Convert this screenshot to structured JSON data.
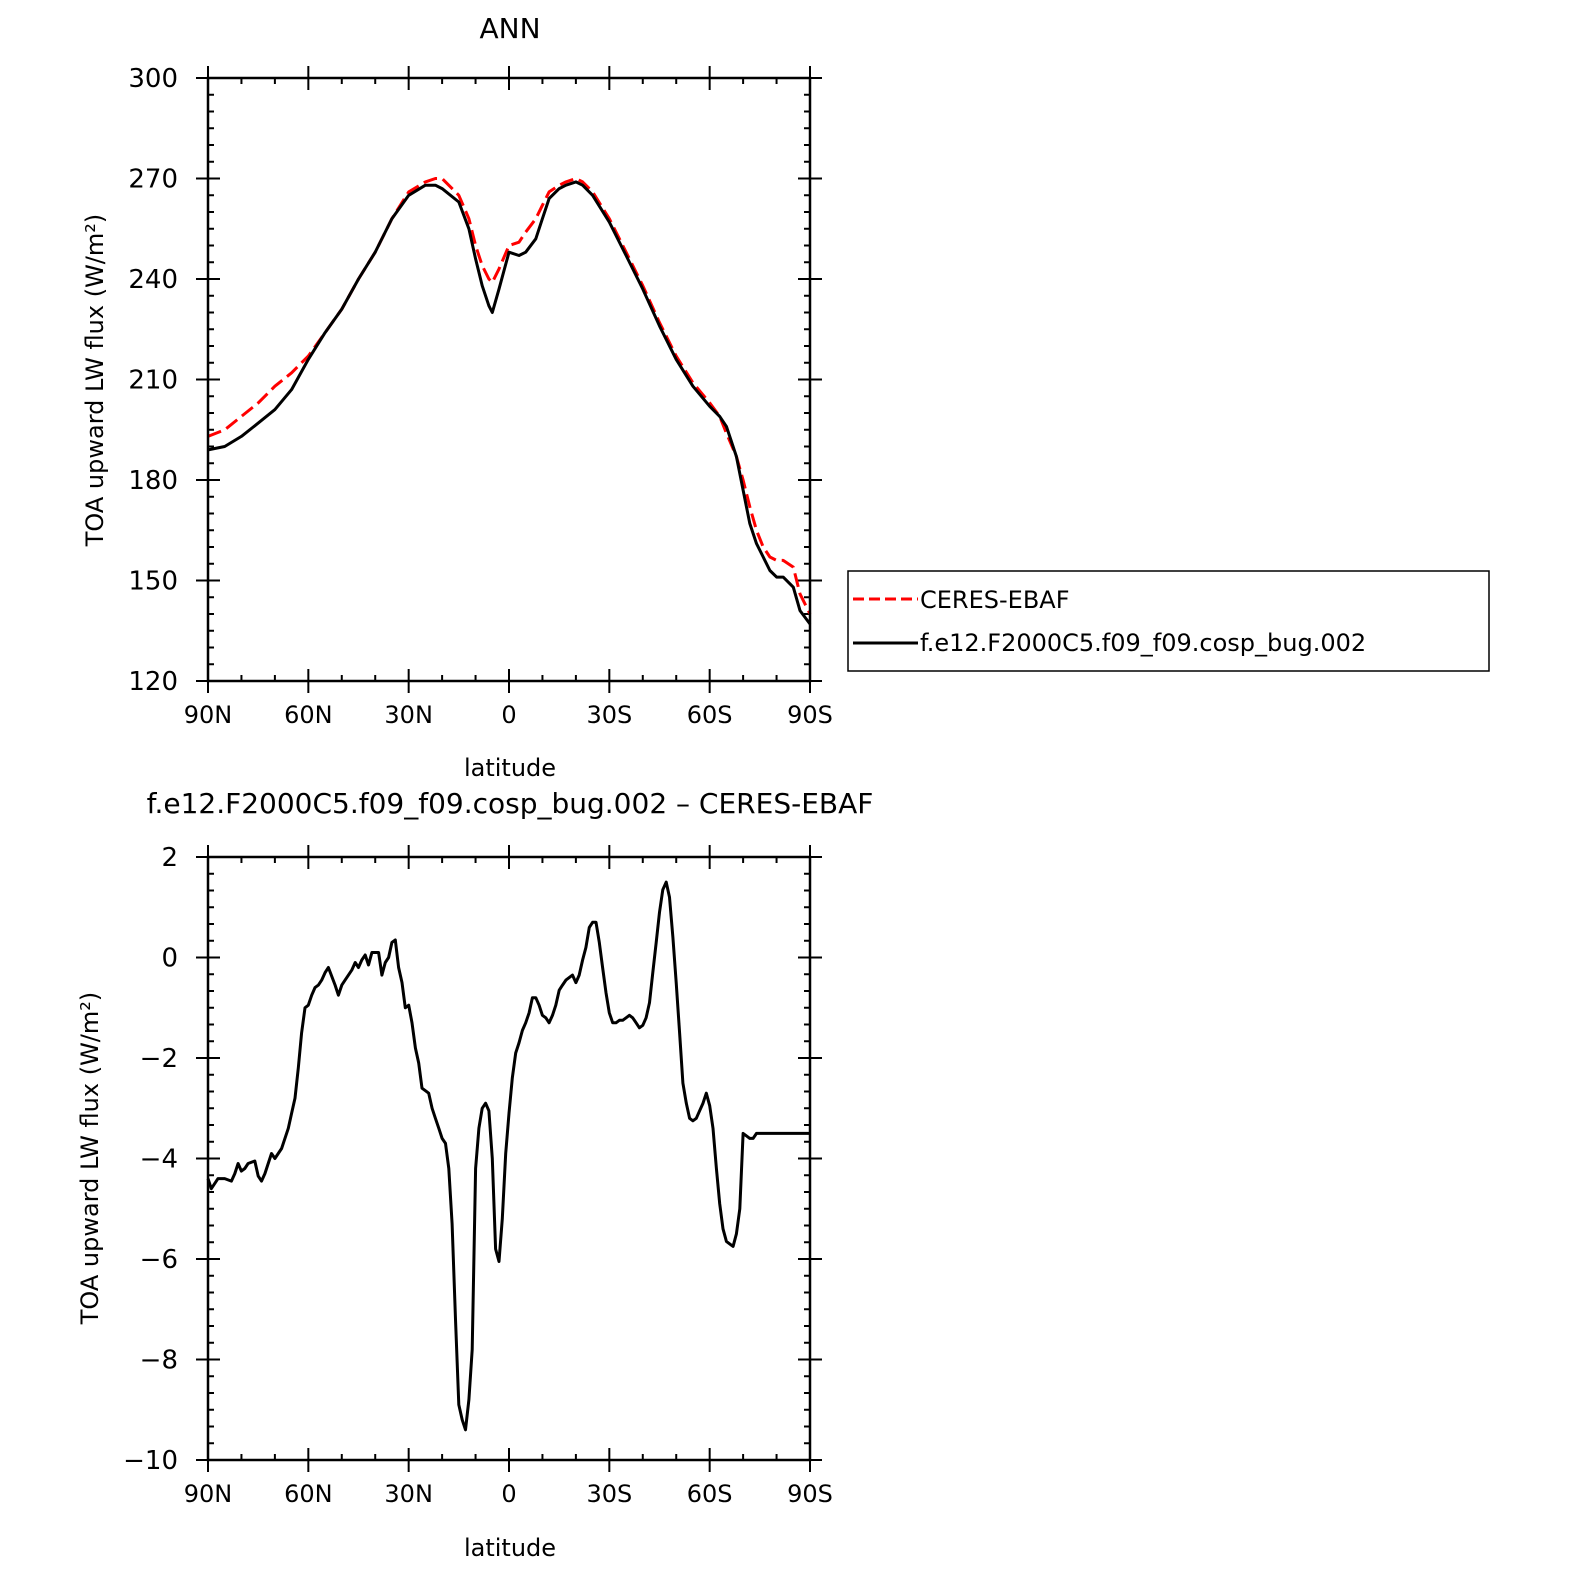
{
  "chart_data": [
    {
      "type": "line",
      "title": "ANN",
      "xlabel": "latitude",
      "ylabel": "TOA upward LW flux (W/m²)",
      "xlim": [
        90,
        -90
      ],
      "ylim": [
        120,
        300
      ],
      "xticks": [
        90,
        60,
        30,
        0,
        -30,
        -60,
        -90
      ],
      "xtick_labels": [
        "90N",
        "60N",
        "30N",
        "0",
        "30S",
        "60S",
        "90S"
      ],
      "yticks": [
        120,
        150,
        180,
        210,
        240,
        270,
        300
      ],
      "ytick_labels": [
        "120",
        "150",
        "180",
        "210",
        "240",
        "270",
        "300"
      ],
      "legend": {
        "placement": "right",
        "entries": [
          "CERES-EBAF",
          "f.e12.F2000C5.f09_f09.cosp_bug.002"
        ]
      },
      "series": [
        {
          "name": "CERES-EBAF",
          "color": "#ff0000",
          "dash": "dashed",
          "x": [
            90,
            85,
            80,
            75,
            70,
            65,
            60,
            55,
            50,
            45,
            40,
            35,
            30,
            25,
            22,
            20,
            15,
            12,
            10,
            8,
            6,
            5,
            3,
            0,
            -3,
            -5,
            -8,
            -10,
            -12,
            -15,
            -17,
            -20,
            -22,
            -25,
            -30,
            -35,
            -40,
            -45,
            -50,
            -55,
            -60,
            -63,
            -65,
            -68,
            -70,
            -72,
            -74,
            -76,
            -78,
            -80,
            -82,
            -85,
            -87,
            -90
          ],
          "y": [
            193,
            195,
            199,
            203,
            208,
            212,
            217,
            224,
            231,
            240,
            248,
            258,
            266,
            269,
            270,
            270,
            265,
            258,
            250,
            244,
            240,
            239,
            243,
            250,
            251,
            254,
            258,
            262,
            266,
            268,
            269,
            270,
            269,
            266,
            258,
            248,
            238,
            227,
            217,
            209,
            203,
            199,
            194,
            187,
            180,
            172,
            165,
            160,
            157,
            156,
            156,
            154,
            146,
            140
          ]
        },
        {
          "name": "f.e12.F2000C5.f09_f09.cosp_bug.002",
          "color": "#000000",
          "dash": "solid",
          "x": [
            90,
            85,
            80,
            75,
            70,
            65,
            60,
            55,
            50,
            45,
            40,
            35,
            30,
            25,
            22,
            20,
            15,
            12,
            10,
            8,
            6,
            5,
            3,
            0,
            -3,
            -5,
            -8,
            -10,
            -12,
            -15,
            -17,
            -20,
            -22,
            -25,
            -30,
            -35,
            -40,
            -45,
            -50,
            -55,
            -60,
            -63,
            -65,
            -68,
            -70,
            -72,
            -74,
            -76,
            -78,
            -80,
            -82,
            -85,
            -87,
            -90
          ],
          "y": [
            189,
            190,
            193,
            197,
            201,
            207,
            216,
            224,
            231,
            240,
            248,
            258,
            265,
            268,
            268,
            267,
            263,
            255,
            246,
            238,
            232,
            230,
            237,
            248,
            247,
            248,
            252,
            258,
            264,
            267,
            268,
            269,
            268,
            265,
            257,
            247,
            237,
            226,
            216,
            208,
            202,
            199,
            196,
            187,
            177,
            167,
            161,
            157,
            153,
            151,
            151,
            148,
            141,
            137
          ]
        }
      ]
    },
    {
      "type": "line",
      "title": "f.e12.F2000C5.f09_f09.cosp_bug.002 – CERES-EBAF",
      "xlabel": "latitude",
      "ylabel": "TOA upward LW flux (W/m²)",
      "xlim": [
        90,
        -90
      ],
      "ylim": [
        -10,
        2
      ],
      "xticks": [
        90,
        60,
        30,
        0,
        -30,
        -60,
        -90
      ],
      "xtick_labels": [
        "90N",
        "60N",
        "30N",
        "0",
        "30S",
        "60S",
        "90S"
      ],
      "yticks": [
        2,
        0,
        -2,
        -4,
        -6,
        -8,
        -10
      ],
      "ytick_labels": [
        "2",
        "0",
        "−2",
        "−4",
        "−6",
        "−8",
        "−10"
      ],
      "series": [
        {
          "name": "",
          "color": "#000000",
          "dash": "solid",
          "x": [
            90,
            89,
            88,
            87,
            85,
            83,
            82,
            81,
            80,
            79,
            78,
            76,
            75,
            74,
            73,
            71,
            70,
            68,
            66,
            65,
            64,
            63,
            62,
            61,
            60,
            59,
            58,
            57,
            56,
            55,
            54,
            52,
            51,
            50,
            49,
            47,
            46,
            45,
            44,
            43,
            42,
            41,
            40,
            39,
            38,
            37,
            36,
            35,
            34,
            33,
            32,
            31,
            30,
            29,
            28,
            27,
            26,
            25,
            24,
            23,
            22,
            21,
            20,
            19,
            18,
            17,
            16,
            15,
            14,
            13,
            12,
            11,
            10,
            9,
            8,
            7,
            6,
            5,
            4,
            3,
            2,
            1,
            0,
            -1,
            -2,
            -3,
            -4,
            -5,
            -6,
            -7,
            -8,
            -9,
            -10,
            -11,
            -12,
            -13,
            -14,
            -15,
            -16,
            -17,
            -18,
            -19,
            -20,
            -21,
            -22,
            -23,
            -24,
            -25,
            -26,
            -27,
            -28,
            -29,
            -30,
            -31,
            -32,
            -33,
            -34,
            -35,
            -36,
            -37,
            -38,
            -39,
            -40,
            -41,
            -42,
            -43,
            -44,
            -45,
            -46,
            -47,
            -48,
            -49,
            -50,
            -51,
            -52,
            -53,
            -54,
            -55,
            -56,
            -57,
            -58,
            -59,
            -60,
            -61,
            -62,
            -63,
            -64,
            -65,
            -66,
            -67,
            -68,
            -69,
            -70,
            -71,
            -72,
            -73,
            -74,
            -75,
            -76,
            -77,
            -78,
            -79,
            -80,
            -81,
            -82,
            -83,
            -84,
            -85,
            -86,
            -87,
            -88,
            -89,
            -90
          ],
          "y": [
            -4.4,
            -4.6,
            -4.5,
            -4.4,
            -4.4,
            -4.45,
            -4.3,
            -4.1,
            -4.25,
            -4.2,
            -4.1,
            -4.05,
            -4.35,
            -4.45,
            -4.3,
            -3.9,
            -4.0,
            -3.8,
            -3.4,
            -3.1,
            -2.8,
            -2.2,
            -1.5,
            -1.0,
            -0.95,
            -0.75,
            -0.6,
            -0.55,
            -0.45,
            -0.3,
            -0.2,
            -0.55,
            -0.75,
            -0.55,
            -0.45,
            -0.25,
            -0.1,
            -0.2,
            -0.05,
            0.05,
            -0.15,
            0.1,
            0.1,
            0.1,
            -0.35,
            -0.1,
            0.0,
            0.3,
            0.35,
            -0.2,
            -0.5,
            -1.0,
            -0.95,
            -1.3,
            -1.8,
            -2.1,
            -2.6,
            -2.65,
            -2.7,
            -3.0,
            -3.2,
            -3.4,
            -3.6,
            -3.7,
            -4.2,
            -5.3,
            -7.2,
            -8.9,
            -9.2,
            -9.4,
            -8.8,
            -7.8,
            -4.2,
            -3.4,
            -3.0,
            -2.9,
            -3.05,
            -4.0,
            -5.8,
            -6.05,
            -5.2,
            -3.9,
            -3.1,
            -2.4,
            -1.9,
            -1.7,
            -1.45,
            -1.3,
            -1.1,
            -0.8,
            -0.8,
            -0.95,
            -1.15,
            -1.2,
            -1.3,
            -1.15,
            -0.95,
            -0.65,
            -0.55,
            -0.45,
            -0.4,
            -0.35,
            -0.5,
            -0.35,
            -0.05,
            0.2,
            0.6,
            0.7,
            0.7,
            0.3,
            -0.2,
            -0.7,
            -1.1,
            -1.3,
            -1.3,
            -1.25,
            -1.25,
            -1.2,
            -1.15,
            -1.2,
            -1.3,
            -1.4,
            -1.35,
            -1.2,
            -0.9,
            -0.3,
            0.3,
            0.9,
            1.35,
            1.5,
            1.2,
            0.4,
            -0.5,
            -1.5,
            -2.5,
            -2.9,
            -3.2,
            -3.25,
            -3.2,
            -3.05,
            -2.9,
            -2.7,
            -2.95,
            -3.4,
            -4.2,
            -4.9,
            -5.4,
            -5.65,
            -5.7,
            -5.75,
            -5.5,
            -5.0,
            -3.5,
            -3.55,
            -3.6,
            -3.6,
            -3.5,
            -3.5,
            -3.5,
            -3.5,
            -3.5,
            -3.5,
            -3.5,
            -3.5,
            -3.5,
            -3.5,
            -3.5,
            -3.5,
            -3.5,
            -3.5,
            -3.5,
            -3.5,
            -3.5
          ]
        }
      ]
    }
  ]
}
